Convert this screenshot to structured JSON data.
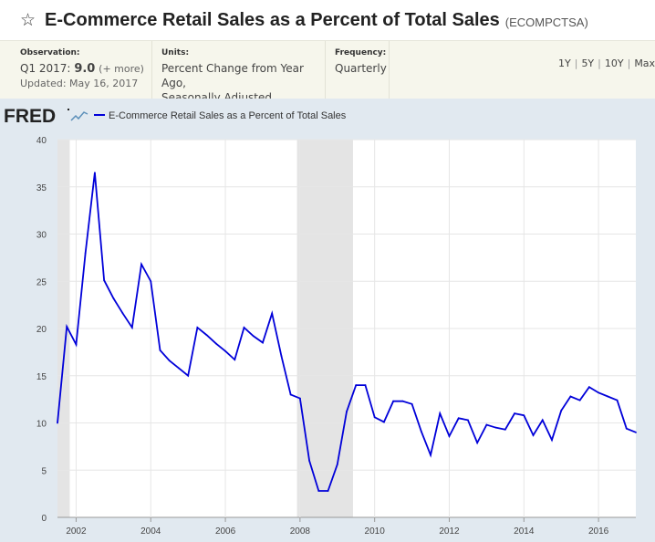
{
  "header": {
    "title": "E-Commerce Retail Sales as a Percent of Total Sales",
    "series_id": "(ECOMPCTSA)"
  },
  "meta": {
    "observation_label": "Observation:",
    "observation_period": "Q1 2017:",
    "observation_value": "9.0",
    "observation_more": "(+ more)",
    "updated": "Updated: May 16, 2017",
    "units_label": "Units:",
    "units_line1": "Percent Change from Year Ago,",
    "units_line2": "Seasonally Adjusted",
    "frequency_label": "Frequency:",
    "frequency_value": "Quarterly"
  },
  "ranges": [
    "1Y",
    "5Y",
    "10Y",
    "Max"
  ],
  "logo": {
    "text": "FRED"
  },
  "colors": {
    "line": "#0000d9",
    "recession": "#e4e4e4",
    "plot_bg": "#ffffff",
    "frame_bg": "#e1e9f0",
    "grid": "#e6e6e6"
  },
  "chart_data": {
    "type": "line",
    "title": "",
    "xlabel": "",
    "ylabel": "",
    "ylim": [
      0,
      40
    ],
    "yticks": [
      0,
      5,
      10,
      15,
      20,
      25,
      30,
      35,
      40
    ],
    "xticks": [
      2002,
      2004,
      2006,
      2008,
      2010,
      2012,
      2014,
      2016
    ],
    "xlim": [
      2001.5,
      2017.0
    ],
    "grid": true,
    "legend_position": "top-left",
    "recessions": [
      [
        2001.5,
        2001.83
      ],
      [
        2007.92,
        2009.42
      ]
    ],
    "series": [
      {
        "name": "E-Commerce Retail Sales as a Percent of Total Sales",
        "x": [
          2001.5,
          2001.75,
          2002.0,
          2002.25,
          2002.5,
          2002.75,
          2003.0,
          2003.25,
          2003.5,
          2003.75,
          2004.0,
          2004.25,
          2004.5,
          2004.75,
          2005.0,
          2005.25,
          2005.5,
          2005.75,
          2006.0,
          2006.25,
          2006.5,
          2006.75,
          2007.0,
          2007.25,
          2007.5,
          2007.75,
          2008.0,
          2008.25,
          2008.5,
          2008.75,
          2009.0,
          2009.25,
          2009.5,
          2009.75,
          2010.0,
          2010.25,
          2010.5,
          2010.75,
          2011.0,
          2011.25,
          2011.5,
          2011.75,
          2012.0,
          2012.25,
          2012.5,
          2012.75,
          2013.0,
          2013.25,
          2013.5,
          2013.75,
          2014.0,
          2014.25,
          2014.5,
          2014.75,
          2015.0,
          2015.25,
          2015.5,
          2015.75,
          2016.0,
          2016.25,
          2016.5,
          2016.75,
          2017.0
        ],
        "values": [
          10.0,
          20.2,
          18.3,
          28.0,
          36.5,
          25.1,
          23.2,
          21.6,
          20.1,
          26.8,
          25.0,
          17.7,
          16.6,
          15.8,
          15.0,
          20.1,
          19.3,
          18.4,
          17.6,
          16.7,
          20.1,
          19.2,
          18.5,
          21.6,
          17.1,
          13.0,
          12.6,
          6.0,
          2.8,
          2.8,
          5.6,
          11.2,
          14.0,
          14.0,
          10.6,
          10.1,
          12.3,
          12.3,
          12.0,
          9.1,
          6.6,
          11.0,
          8.6,
          10.5,
          10.3,
          7.9,
          9.8,
          9.5,
          9.3,
          11.0,
          10.8,
          8.7,
          10.3,
          8.2,
          11.3,
          12.8,
          12.4,
          13.8,
          13.2,
          12.8,
          12.4,
          9.4,
          9.0
        ]
      }
    ]
  }
}
